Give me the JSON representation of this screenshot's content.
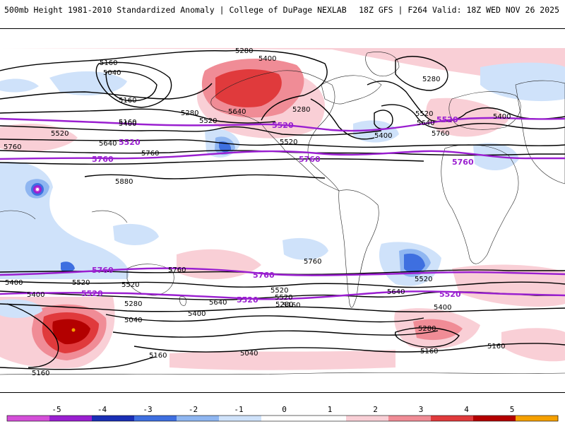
{
  "header": {
    "left": "500mb Height 1981-2010 Standardized Anomaly | College of DuPage NEXLAB",
    "right": "18Z GFS | F264 Valid: 18Z WED NOV 26 2025"
  },
  "colors": {
    "contour": "#000000",
    "highlight_contour": "#9a1fd0",
    "pos1": "#f9cfd6",
    "pos2": "#f08c96",
    "pos3": "#e03a3c",
    "pos4": "#b30000",
    "pos5": "#f5a000",
    "neg1": "#cfe2fa",
    "neg2": "#8fb6f1",
    "neg3": "#3e6fe0",
    "neg4": "#1a2fb5",
    "neg5": "#d44fd8"
  },
  "contour_labels": {
    "black": [
      "5280",
      "5400",
      "5160",
      "5040",
      "5280",
      "5160",
      "5640",
      "5280",
      "5520",
      "5280",
      "5520",
      "5400",
      "5520",
      "5640",
      "5400",
      "5760",
      "5400",
      "5760",
      "5760",
      "5520",
      "5880",
      "5160",
      "5640",
      "5520",
      "5400",
      "5520",
      "5760",
      "5520",
      "5640",
      "5400",
      "5280",
      "5040",
      "5160",
      "5040",
      "5160",
      "5520",
      "5400",
      "5280",
      "5160",
      "5640",
      "5760",
      "5520",
      "5400",
      "5280",
      "5160",
      "5160"
    ],
    "purple": [
      "5520",
      "5520",
      "5760",
      "5760",
      "5520",
      "5760",
      "5760",
      "5760",
      "5760",
      "5520",
      "5520",
      "5520"
    ]
  },
  "colorbar": {
    "ticks": [
      "-5",
      "-4",
      "-3",
      "-2",
      "-1",
      "0",
      "1",
      "2",
      "3",
      "4",
      "5"
    ],
    "colors": [
      "#d44fd8",
      "#9a1fd0",
      "#1a2fb5",
      "#3e6fe0",
      "#8fb6f1",
      "#cfe2fa",
      "#ffffff",
      "#ffffff",
      "#f9cfd6",
      "#f08c96",
      "#e03a3c",
      "#b30000",
      "#f5a000"
    ]
  }
}
